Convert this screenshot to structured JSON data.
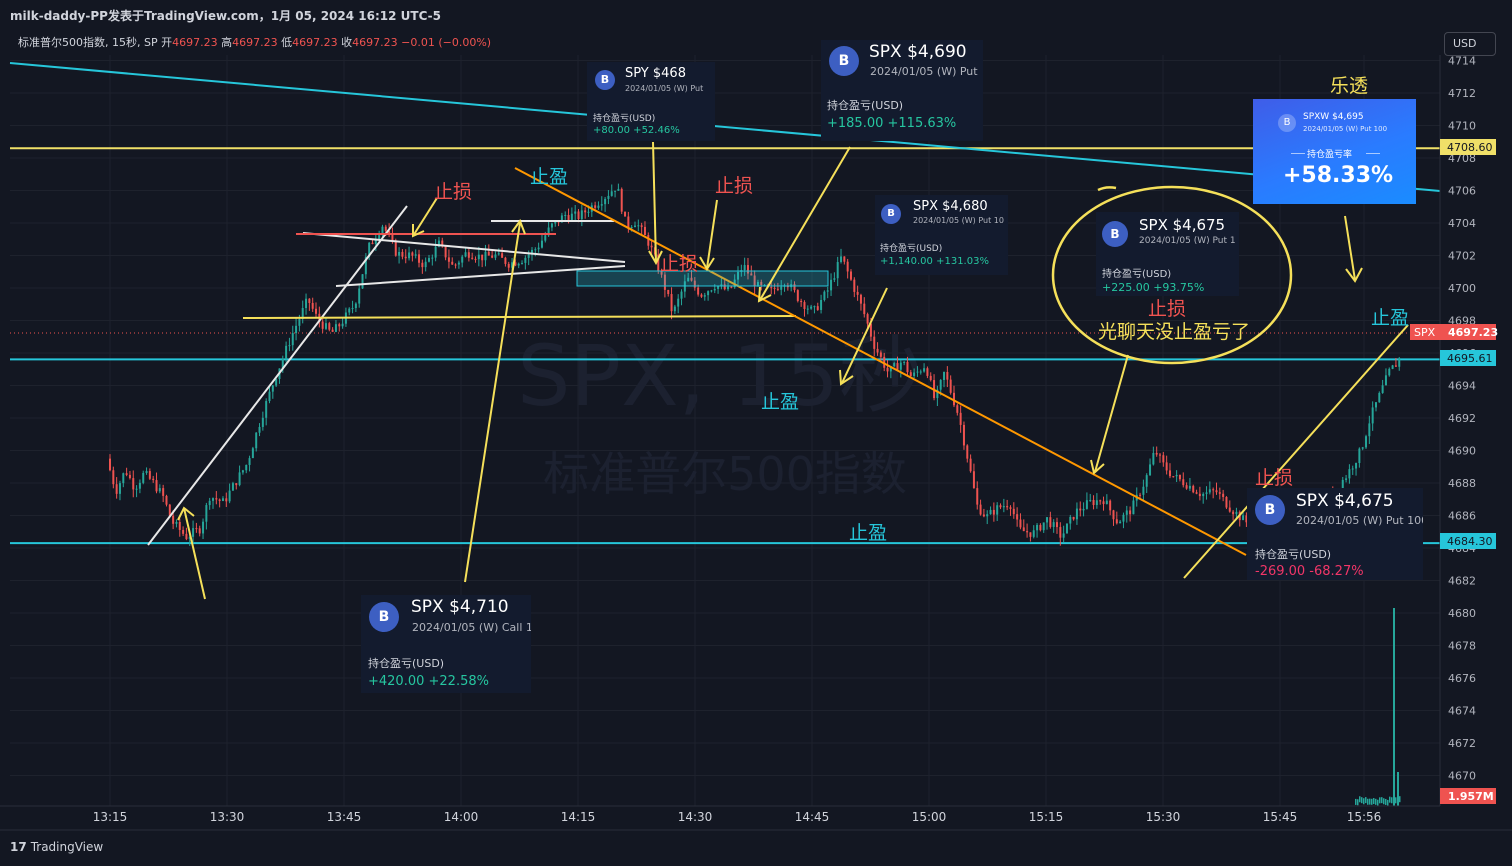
{
  "header": {
    "title": "milk-daddy-PP发表于TradingView.com，1月 05, 2024 16:12 UTC-5"
  },
  "legend": {
    "symbol": "标准普尔500指数, 15秒, SP",
    "open_label": "开",
    "open": "4697.23",
    "high_label": "高",
    "high": "4697.23",
    "low_label": "低",
    "low": "4697.23",
    "close_label": "收",
    "close": "4697.23",
    "change": "−0.01 (−0.00%)"
  },
  "currency_button": "USD",
  "watermark": {
    "line1": "SPX, 15秒",
    "line2": "标准普尔500指数"
  },
  "footer": {
    "brand": "TradingView"
  },
  "price_tags": {
    "last_symbol": "SPX",
    "last_price": "4697.23",
    "yellow_line": "4708.60",
    "cyan_upper": "4695.61",
    "cyan_lower": "4684.30",
    "volume": "1.957M"
  },
  "annotations": {
    "stop_loss": "止损",
    "take_profit": "止盈",
    "lotto": "乐透",
    "chat_note": "光聊天没止盈亏了"
  },
  "cards": [
    {
      "id": "spy468",
      "badge": "B",
      "title": "SPY $468",
      "sub": "2024/01/05 (W) Put",
      "label": "持仓盈亏(USD)",
      "value": "+80.00 +52.46%",
      "sign": "pos"
    },
    {
      "id": "spx4690",
      "badge": "B",
      "title": "SPX $4,690",
      "sub": "2024/01/05 (W) Put",
      "label": "持仓盈亏(USD)",
      "value": "+185.00 +115.63%",
      "sign": "pos"
    },
    {
      "id": "spx4680",
      "badge": "B",
      "title": "SPX $4,680",
      "sub": "2024/01/05 (W) Put 10",
      "label": "持仓盈亏(USD)",
      "value": "+1,140.00 +131.03%",
      "sign": "pos"
    },
    {
      "id": "spx4675a",
      "badge": "B",
      "title": "SPX $4,675",
      "sub": "2024/01/05 (W) Put 1",
      "label": "持仓盈亏(USD)",
      "value": "+225.00 +93.75%",
      "sign": "pos"
    },
    {
      "id": "spx4710",
      "badge": "B",
      "title": "SPX $4,710",
      "sub": "2024/01/05 (W) Call 1",
      "label": "持仓盈亏(USD)",
      "value": "+420.00 +22.58%",
      "sign": "pos"
    },
    {
      "id": "spx4675b",
      "badge": "B",
      "title": "SPX $4,675",
      "sub": "2024/01/05 (W) Put 100",
      "label": "持仓盈亏(USD)",
      "value": "-269.00 -68.27%",
      "sign": "neg"
    }
  ],
  "big_card": {
    "badge": "B",
    "title": "SPXW $4,695",
    "sub": "2024/01/05 (W) Put 100",
    "label": "持仓盈亏率",
    "value": "+58.33%"
  },
  "chart_data": {
    "type": "candlestick",
    "title": "标准普尔500指数, 15秒, SP",
    "y_ticks": [
      4714,
      4712,
      4710,
      4708,
      4706,
      4704,
      4702,
      4700,
      4698,
      4696,
      4694,
      4692,
      4690,
      4688,
      4686,
      4684,
      4682,
      4680,
      4678,
      4676,
      4674,
      4672,
      4670
    ],
    "x_ticks": [
      "13:15",
      "13:30",
      "13:45",
      "14:00",
      "14:15",
      "14:30",
      "14:45",
      "15:00",
      "15:15",
      "15:30",
      "15:45",
      "15:56"
    ],
    "ylim": [
      4668.8,
      4715
    ],
    "horizontal_lines": [
      {
        "price": 4708.6,
        "color": "#f0e068"
      },
      {
        "price": 4695.61,
        "color": "#26c6da"
      },
      {
        "price": 4684.3,
        "color": "#26c6da"
      },
      {
        "price": 4697.23,
        "color": "#ef5350",
        "style": "dotted"
      }
    ],
    "price_path": [
      [
        0,
        4689.5
      ],
      [
        0.02,
        4687.5
      ],
      [
        0.04,
        4688.8
      ],
      [
        0.06,
        4687.7
      ],
      [
        0.08,
        4688.6
      ],
      [
        0.1,
        4688
      ],
      [
        0.12,
        4687.2
      ],
      [
        0.14,
        4685.6
      ],
      [
        0.17,
        4684.7
      ],
      [
        0.2,
        4685.2
      ],
      [
        0.22,
        4687.2
      ],
      [
        0.25,
        4686.8
      ],
      [
        0.27,
        4687.8
      ],
      [
        0.3,
        4689.2
      ],
      [
        0.33,
        4692
      ],
      [
        0.36,
        4694.5
      ],
      [
        0.4,
        4697.4
      ],
      [
        0.43,
        4699.3
      ],
      [
        0.45,
        4698.1
      ],
      [
        0.48,
        4697.2
      ],
      [
        0.5,
        4697.8
      ],
      [
        0.53,
        4699
      ],
      [
        0.56,
        4702.5
      ],
      [
        0.59,
        4703.9
      ],
      [
        0.62,
        4702.1
      ],
      [
        0.65,
        4702
      ],
      [
        0.68,
        4701.4
      ],
      [
        0.71,
        4702.7
      ],
      [
        0.74,
        4701.3
      ],
      [
        0.77,
        4702.2
      ],
      [
        0.8,
        4701.9
      ],
      [
        0.83,
        4702
      ],
      [
        0.86,
        4701.5
      ],
      [
        0.89,
        4701.8
      ],
      [
        0.92,
        4702.5
      ],
      [
        0.95,
        4703.8
      ],
      [
        0.98,
        4704.5
      ],
      [
        1.01,
        4704.4
      ],
      [
        1.03,
        4704.9
      ],
      [
        1.06,
        4705.5
      ],
      [
        1.09,
        4706.3
      ],
      [
        1.11,
        4703.8
      ],
      [
        1.13,
        4704.1
      ],
      [
        1.16,
        4702.7
      ],
      [
        1.19,
        4700.3
      ],
      [
        1.21,
        4698.4
      ],
      [
        1.24,
        4700.6
      ],
      [
        1.27,
        4699.6
      ],
      [
        1.3,
        4700.2
      ],
      [
        1.33,
        4699.8
      ],
      [
        1.36,
        4701.4
      ],
      [
        1.39,
        4700.1
      ],
      [
        1.42,
        4699.8
      ],
      [
        1.45,
        4700.5
      ],
      [
        1.48,
        4699.3
      ],
      [
        1.51,
        4698.5
      ],
      [
        1.54,
        4699.8
      ],
      [
        1.57,
        4701.9
      ],
      [
        1.6,
        4699.8
      ],
      [
        1.62,
        4698.3
      ],
      [
        1.64,
        4696.5
      ],
      [
        1.67,
        4694.8
      ],
      [
        1.7,
        4695.5
      ],
      [
        1.72,
        4694.5
      ],
      [
        1.75,
        4695.3
      ],
      [
        1.77,
        4693
      ],
      [
        1.79,
        4694.8
      ],
      [
        1.82,
        4692.2
      ],
      [
        1.84,
        4689.5
      ],
      [
        1.86,
        4686.6
      ],
      [
        1.88,
        4685.9
      ],
      [
        1.9,
        4686.4
      ],
      [
        1.93,
        4686.8
      ],
      [
        1.95,
        4685.1
      ],
      [
        1.98,
        4684.9
      ],
      [
        2.01,
        4685.8
      ],
      [
        2.04,
        4684.7
      ],
      [
        2.07,
        4686.2
      ],
      [
        2.1,
        4686.8
      ],
      [
        2.13,
        4687
      ],
      [
        2.16,
        4685.6
      ],
      [
        2.19,
        4686.4
      ],
      [
        2.22,
        4688.2
      ],
      [
        2.24,
        4690
      ],
      [
        2.26,
        4689
      ],
      [
        2.28,
        4688.4
      ],
      [
        2.31,
        4687.9
      ],
      [
        2.34,
        4687.3
      ],
      [
        2.37,
        4687.5
      ],
      [
        2.4,
        4686.5
      ],
      [
        2.43,
        4685.7
      ],
      [
        2.46,
        4685.1
      ],
      [
        2.49,
        4683.8
      ],
      [
        2.51,
        4682.9
      ],
      [
        2.53,
        4684.3
      ],
      [
        2.56,
        4685.3
      ],
      [
        2.59,
        4686.2
      ],
      [
        2.62,
        4687.4
      ],
      [
        2.65,
        4688.5
      ],
      [
        2.68,
        4690
      ],
      [
        2.7,
        4692
      ],
      [
        2.72,
        4693.4
      ],
      [
        2.74,
        4694.8
      ],
      [
        2.76,
        4695.5
      ],
      [
        2.78,
        4696.9
      ],
      [
        2.8,
        4699.2
      ],
      [
        2.82,
        4697.6
      ],
      [
        2.84,
        4697.3
      ],
      [
        2.86,
        4696.5
      ],
      [
        2.88,
        4697.7
      ],
      [
        2.9,
        4697.23
      ]
    ],
    "volume_spike": "1.957M"
  }
}
